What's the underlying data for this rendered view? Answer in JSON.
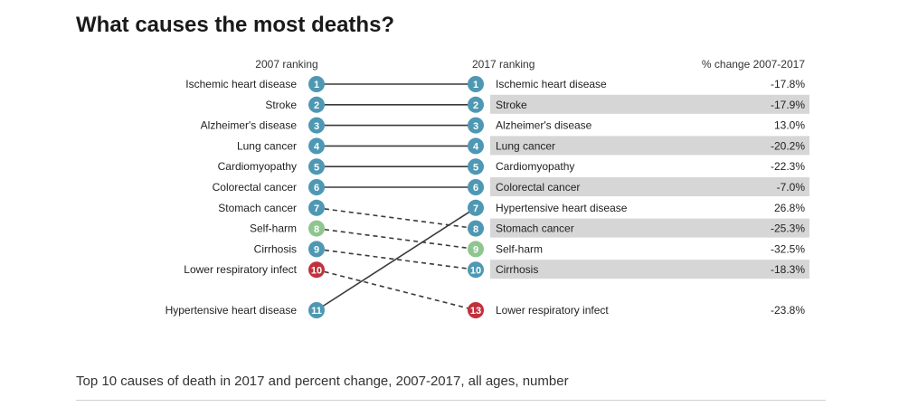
{
  "title": "What causes the most deaths?",
  "caption": "Top 10 causes of death in 2017 and percent change, 2007-2017, all ages, number",
  "colors": {
    "blue": "#4e98b3",
    "green": "#8fc58f",
    "red": "#c0313c",
    "row_shade": "#d6d6d6",
    "line": "#3a3a3a"
  },
  "chart_data": {
    "type": "slope",
    "headers": {
      "left": "2007 ranking",
      "right": "2017 ranking",
      "change": "% change 2007-2017"
    },
    "left": [
      {
        "rank": 1,
        "cause": "Ischemic heart disease",
        "color": "blue"
      },
      {
        "rank": 2,
        "cause": "Stroke",
        "color": "blue"
      },
      {
        "rank": 3,
        "cause": "Alzheimer's disease",
        "color": "blue"
      },
      {
        "rank": 4,
        "cause": "Lung cancer",
        "color": "blue"
      },
      {
        "rank": 5,
        "cause": "Cardiomyopathy",
        "color": "blue"
      },
      {
        "rank": 6,
        "cause": "Colorectal cancer",
        "color": "blue"
      },
      {
        "rank": 7,
        "cause": "Stomach cancer",
        "color": "blue"
      },
      {
        "rank": 8,
        "cause": "Self-harm",
        "color": "green"
      },
      {
        "rank": 9,
        "cause": "Cirrhosis",
        "color": "blue"
      },
      {
        "rank": 10,
        "cause": "Lower respiratory infect",
        "color": "red"
      },
      {
        "rank": 11,
        "cause": "Hypertensive heart disease",
        "color": "blue"
      }
    ],
    "right": [
      {
        "rank": 1,
        "cause": "Ischemic heart disease",
        "change": "-17.8%",
        "color": "blue",
        "shaded": false
      },
      {
        "rank": 2,
        "cause": "Stroke",
        "change": "-17.9%",
        "color": "blue",
        "shaded": true
      },
      {
        "rank": 3,
        "cause": "Alzheimer's disease",
        "change": "13.0%",
        "color": "blue",
        "shaded": false
      },
      {
        "rank": 4,
        "cause": "Lung cancer",
        "change": "-20.2%",
        "color": "blue",
        "shaded": true
      },
      {
        "rank": 5,
        "cause": "Cardiomyopathy",
        "change": "-22.3%",
        "color": "blue",
        "shaded": false
      },
      {
        "rank": 6,
        "cause": "Colorectal cancer",
        "change": "-7.0%",
        "color": "blue",
        "shaded": true
      },
      {
        "rank": 7,
        "cause": "Hypertensive heart disease",
        "change": "26.8%",
        "color": "blue",
        "shaded": false
      },
      {
        "rank": 8,
        "cause": "Stomach cancer",
        "change": "-25.3%",
        "color": "blue",
        "shaded": true
      },
      {
        "rank": 9,
        "cause": "Self-harm",
        "change": "-32.5%",
        "color": "green",
        "shaded": false
      },
      {
        "rank": 10,
        "cause": "Cirrhosis",
        "change": "-18.3%",
        "color": "blue",
        "shaded": true
      },
      {
        "rank": 13,
        "cause": "Lower respiratory infect",
        "change": "-23.8%",
        "color": "red",
        "shaded": false
      }
    ]
  }
}
